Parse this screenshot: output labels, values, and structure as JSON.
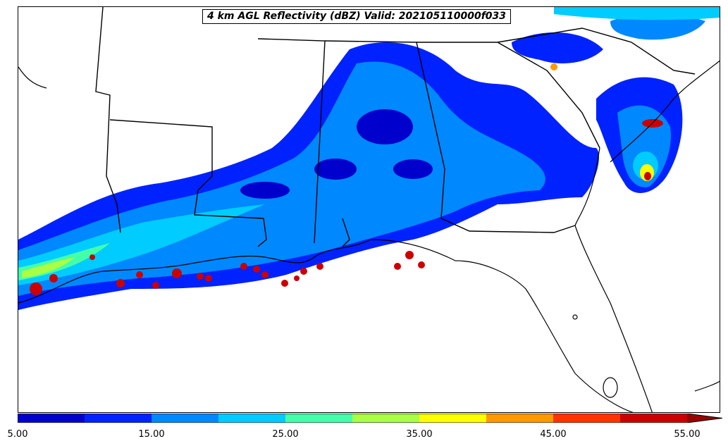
{
  "map": {
    "title": "4 km AGL Reflectivity (dBZ) Valid: 202105110000f033",
    "field": "reflectivity",
    "units": "dBZ",
    "region": "southeastern-united-states"
  },
  "colorbar": {
    "min": 5,
    "max": 55,
    "extend": "max",
    "levels": [
      5,
      10,
      15,
      20,
      25,
      30,
      35,
      40,
      45,
      50,
      55
    ],
    "colors": [
      "#0000cc",
      "#0022ff",
      "#0088ff",
      "#00ccff",
      "#44ffaa",
      "#aaff44",
      "#ffff00",
      "#ff9900",
      "#ff3300",
      "#cc0000"
    ],
    "extend_color": "#990000",
    "tick_labels": [
      "5.00",
      "15.00",
      "25.00",
      "35.00",
      "45.00",
      "55.00"
    ],
    "tick_values": [
      5,
      15,
      25,
      35,
      45,
      55
    ]
  }
}
